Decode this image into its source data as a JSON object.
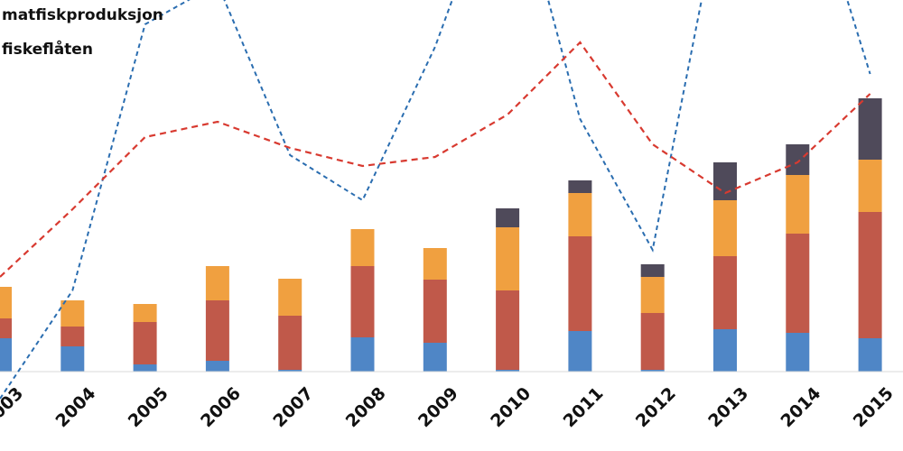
{
  "chart_data": {
    "type": "bar",
    "stacked": true,
    "categories": [
      "2003",
      "2004",
      "2005",
      "2006",
      "2007",
      "2008",
      "2009",
      "2010",
      "2011",
      "2012",
      "2013",
      "2014",
      "2015"
    ],
    "bar_series": [
      {
        "color": "#4f86c6",
        "values": [
          37,
          28,
          8,
          12,
          2,
          38,
          32,
          2,
          45,
          2,
          47,
          43,
          37
        ]
      },
      {
        "color": "#c0594a",
        "values": [
          22,
          22,
          47,
          67,
          60,
          79,
          70,
          88,
          105,
          63,
          81,
          110,
          140
        ]
      },
      {
        "color": "#f0a040",
        "values": [
          35,
          29,
          20,
          38,
          41,
          41,
          35,
          70,
          48,
          40,
          62,
          65,
          58
        ]
      },
      {
        "color": "#4f4a5a",
        "values": [
          0,
          0,
          0,
          0,
          0,
          0,
          0,
          21,
          14,
          14,
          42,
          34,
          68
        ]
      }
    ],
    "line_series": [
      {
        "name": "matfiskproduksjon",
        "color": "#2a6db0",
        "values": [
          -30,
          90,
          385,
          430,
          240,
          190,
          360,
          580,
          280,
          135,
          545,
          590,
          330
        ]
      },
      {
        "name": "fiskeflåten",
        "color": "#d83a30",
        "values": [
          105,
          180,
          260,
          277,
          248,
          228,
          238,
          285,
          365,
          252,
          198,
          232,
          308
        ]
      }
    ],
    "legend": [
      "matfiskproduksjon",
      "fiskeflåten"
    ],
    "ylim": [
      0,
      400
    ],
    "grid": false,
    "legend_position": "top-left"
  }
}
